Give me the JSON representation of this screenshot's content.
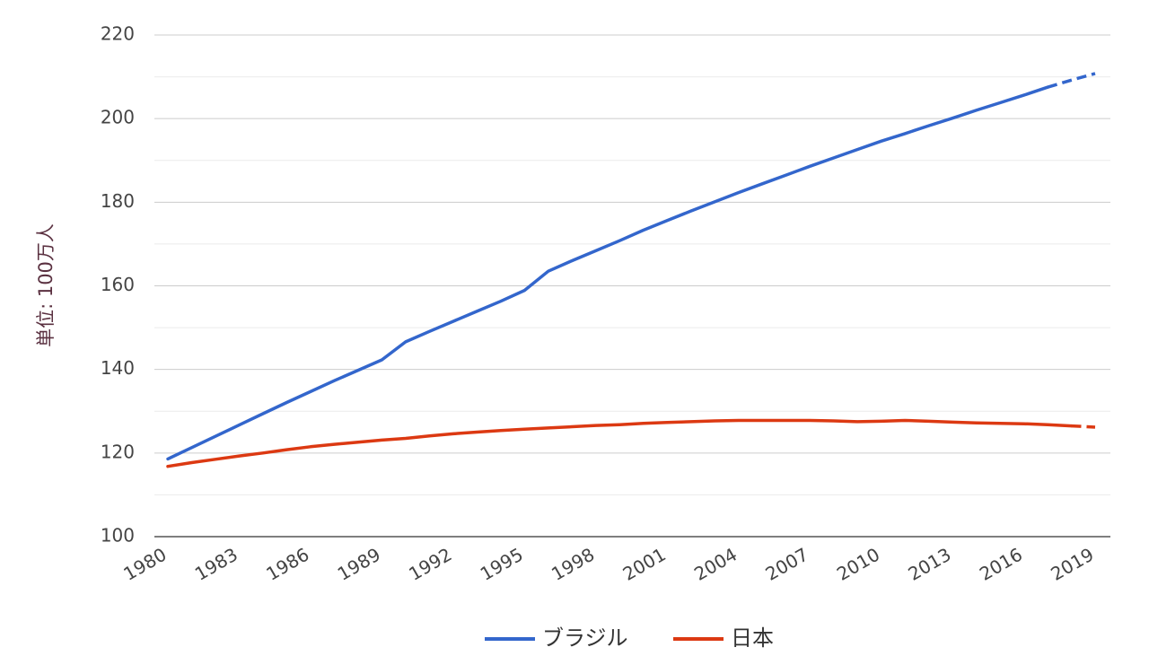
{
  "chart_data": {
    "type": "line",
    "ylabel": "単位: 100万人",
    "xlabel": "",
    "ylim": [
      100,
      220
    ],
    "yticks": [
      100,
      120,
      140,
      160,
      180,
      200,
      220
    ],
    "xlim": [
      1980,
      2019
    ],
    "xticks": [
      1980,
      1983,
      1986,
      1989,
      1992,
      1995,
      1998,
      2001,
      2004,
      2007,
      2010,
      2013,
      2016,
      2019
    ],
    "grid": true,
    "legend_position": "bottom",
    "x": [
      1980,
      1981,
      1982,
      1983,
      1984,
      1985,
      1986,
      1987,
      1988,
      1989,
      1990,
      1991,
      1992,
      1993,
      1994,
      1995,
      1996,
      1997,
      1998,
      1999,
      2000,
      2001,
      2002,
      2003,
      2004,
      2005,
      2006,
      2007,
      2008,
      2009,
      2010,
      2011,
      2012,
      2013,
      2014,
      2015,
      2016,
      2017,
      2018,
      2019
    ],
    "series": [
      {
        "name": "ブラジル",
        "color": "#3366cc",
        "projected_from": 2017,
        "values": [
          118.6,
          121.3,
          124.0,
          126.7,
          129.4,
          132.1,
          134.7,
          137.3,
          139.8,
          142.3,
          146.6,
          149.1,
          151.5,
          153.9,
          156.3,
          158.9,
          163.5,
          166.0,
          168.4,
          170.8,
          173.3,
          175.6,
          177.9,
          180.1,
          182.3,
          184.4,
          186.5,
          188.6,
          190.6,
          192.6,
          194.6,
          196.4,
          198.3,
          200.1,
          202.0,
          203.8,
          205.6,
          207.5,
          209.2,
          210.8
        ]
      },
      {
        "name": "日本",
        "color": "#dc3912",
        "projected_from": 2018,
        "values": [
          116.8,
          117.7,
          118.5,
          119.3,
          120.0,
          120.8,
          121.5,
          122.1,
          122.6,
          123.1,
          123.5,
          124.1,
          124.6,
          125.0,
          125.4,
          125.7,
          126.0,
          126.3,
          126.6,
          126.8,
          127.1,
          127.3,
          127.5,
          127.7,
          127.8,
          127.8,
          127.8,
          127.8,
          127.7,
          127.5,
          127.6,
          127.8,
          127.6,
          127.4,
          127.2,
          127.1,
          127.0,
          126.8,
          126.5,
          126.2
        ]
      }
    ]
  }
}
